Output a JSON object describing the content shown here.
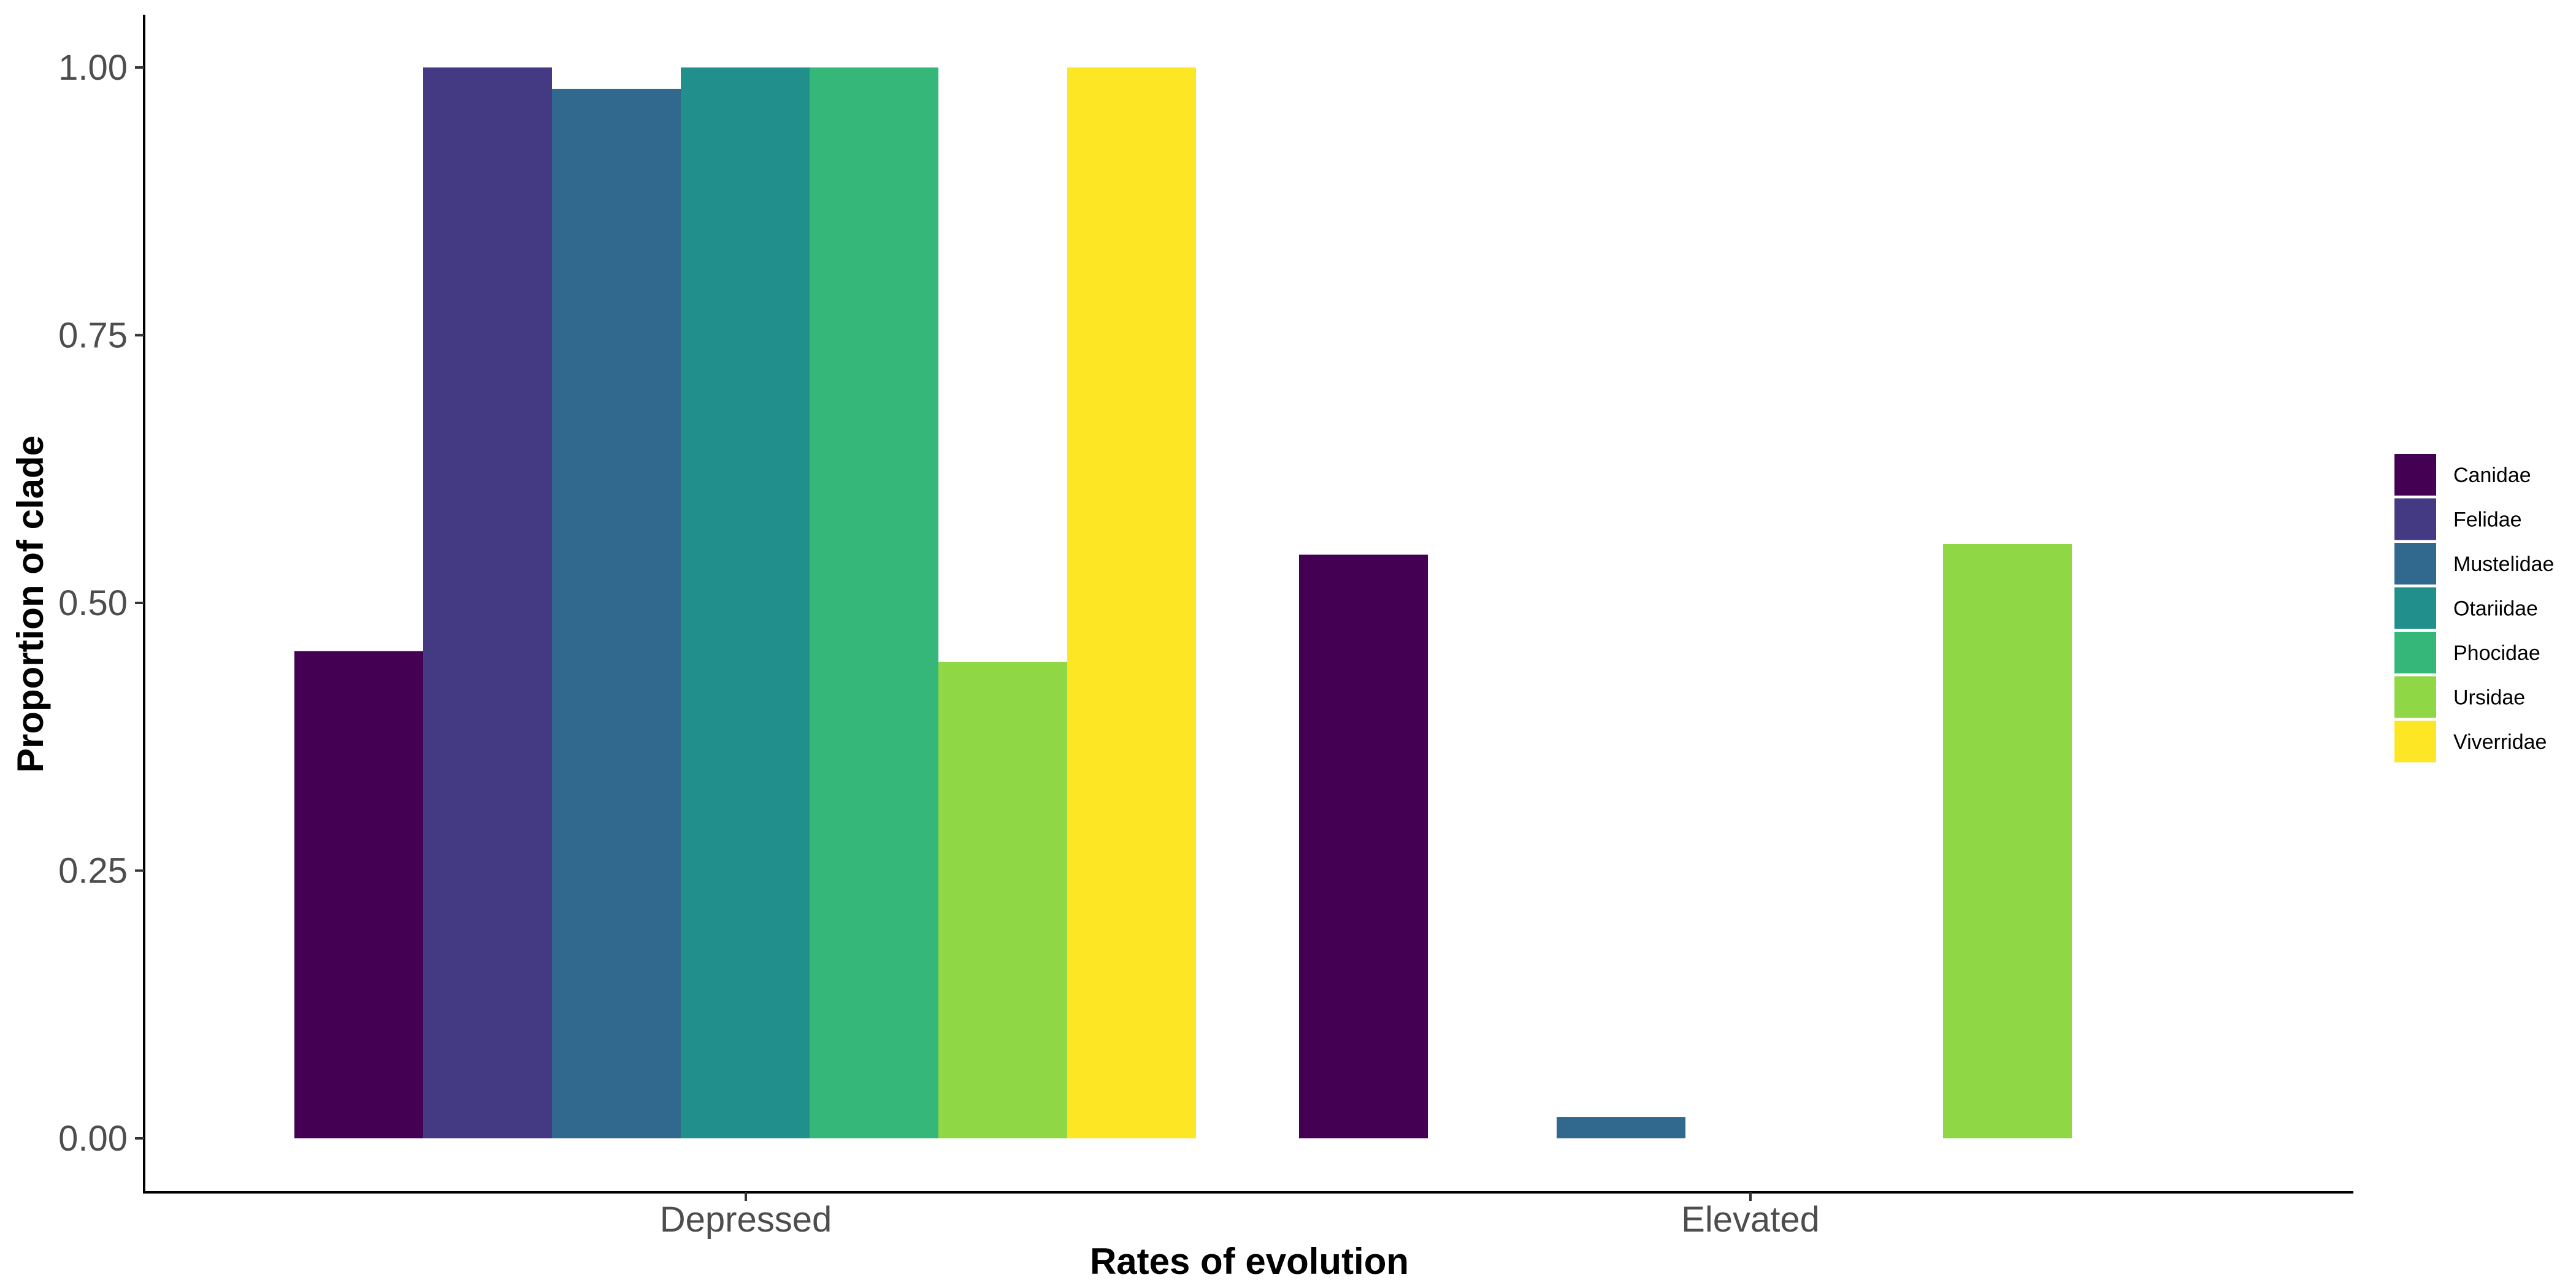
{
  "chart_data": {
    "type": "bar",
    "xlabel": "Rates of evolution",
    "ylabel": "Proportion of clade",
    "categories": [
      "Depressed",
      "Elevated"
    ],
    "ylim": [
      0,
      1.05
    ],
    "yticks": [
      "0.00",
      "0.25",
      "0.50",
      "0.75",
      "1.00"
    ],
    "ytick_values": [
      0,
      0.25,
      0.5,
      0.75,
      1.0
    ],
    "grid": false,
    "legend_position": "right",
    "series": [
      {
        "name": "Canidae",
        "color": "#440154",
        "values": [
          0.455,
          0.545
        ]
      },
      {
        "name": "Felidae",
        "color": "#443A83",
        "values": [
          1.0,
          null
        ]
      },
      {
        "name": "Mustelidae",
        "color": "#31688E",
        "values": [
          0.98,
          0.02
        ]
      },
      {
        "name": "Otariidae",
        "color": "#21908C",
        "values": [
          1.0,
          null
        ]
      },
      {
        "name": "Phocidae",
        "color": "#35B779",
        "values": [
          1.0,
          null
        ]
      },
      {
        "name": "Ursidae",
        "color": "#8FD744",
        "values": [
          0.445,
          0.555
        ]
      },
      {
        "name": "Viverridae",
        "color": "#FDE725",
        "values": [
          1.0,
          null
        ]
      }
    ]
  }
}
